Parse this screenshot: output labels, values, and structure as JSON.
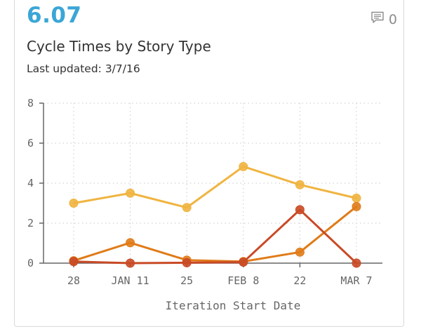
{
  "card": {
    "metric_value": "6.07",
    "comment_count": "0",
    "title": "Cycle Times by Story Type",
    "last_updated": "Last updated: 3/7/16"
  },
  "colors": {
    "metric": "#3ba6d6",
    "series": [
      "#f0b440",
      "#e07b18",
      "#c94a26"
    ]
  },
  "icons": {
    "comment": "comment-icon"
  },
  "chart_data": {
    "type": "line",
    "categories": [
      "28",
      "JAN 11",
      "25",
      "FEB 8",
      "22",
      "MAR 7"
    ],
    "xlabel": "Iteration Start Date",
    "ylabel": "",
    "ylim": [
      0,
      8
    ],
    "yticks": [
      "0",
      "2",
      "4",
      "6",
      "8"
    ],
    "grid": true,
    "series": [
      {
        "values": [
          3.0,
          3.5,
          2.78,
          4.83,
          3.92,
          3.25
        ]
      },
      {
        "values": [
          0.12,
          1.02,
          0.15,
          0.08,
          0.55,
          2.83
        ]
      },
      {
        "values": [
          0.08,
          0.0,
          0.02,
          0.05,
          2.67,
          0.0
        ]
      }
    ]
  }
}
